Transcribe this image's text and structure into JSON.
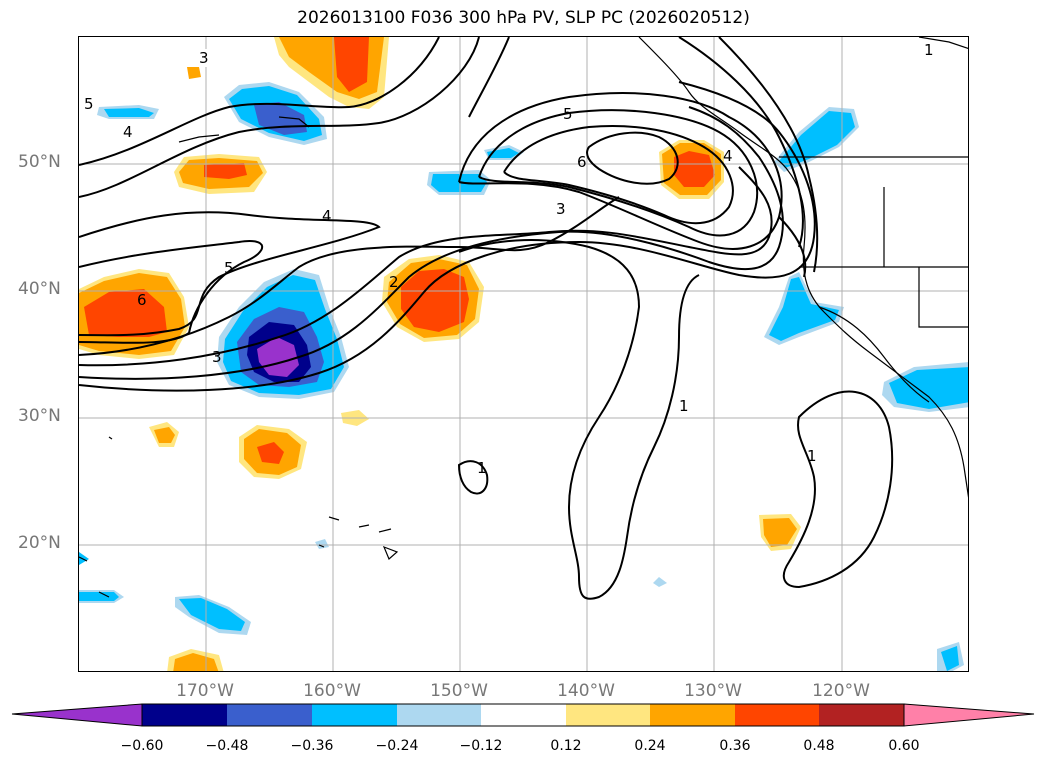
{
  "title": "2026013100 F036 300 hPa PV, SLP PC (2026020512)",
  "lat_labels": [
    "50°N",
    "40°N",
    "30°N",
    "20°N"
  ],
  "lon_labels": [
    "170°W",
    "160°W",
    "150°W",
    "140°W",
    "130°W",
    "120°W"
  ],
  "contour_labels": [
    "3",
    "5",
    "4",
    "4",
    "5",
    "6",
    "3",
    "2",
    "5",
    "6",
    "3",
    "4",
    "1",
    "1",
    "1",
    "1"
  ],
  "colorbar": {
    "ticks": [
      "−0.60",
      "−0.48",
      "−0.36",
      "−0.24",
      "−0.12",
      "0.12",
      "0.24",
      "0.36",
      "0.48",
      "0.60"
    ],
    "colors": [
      "#9932cc",
      "#00008b",
      "#3a5fcd",
      "#00bfff",
      "#add8f0",
      "#ffffff",
      "#ffe680",
      "#ffa500",
      "#ff4500",
      "#b22222",
      "#ff80a8"
    ]
  }
}
